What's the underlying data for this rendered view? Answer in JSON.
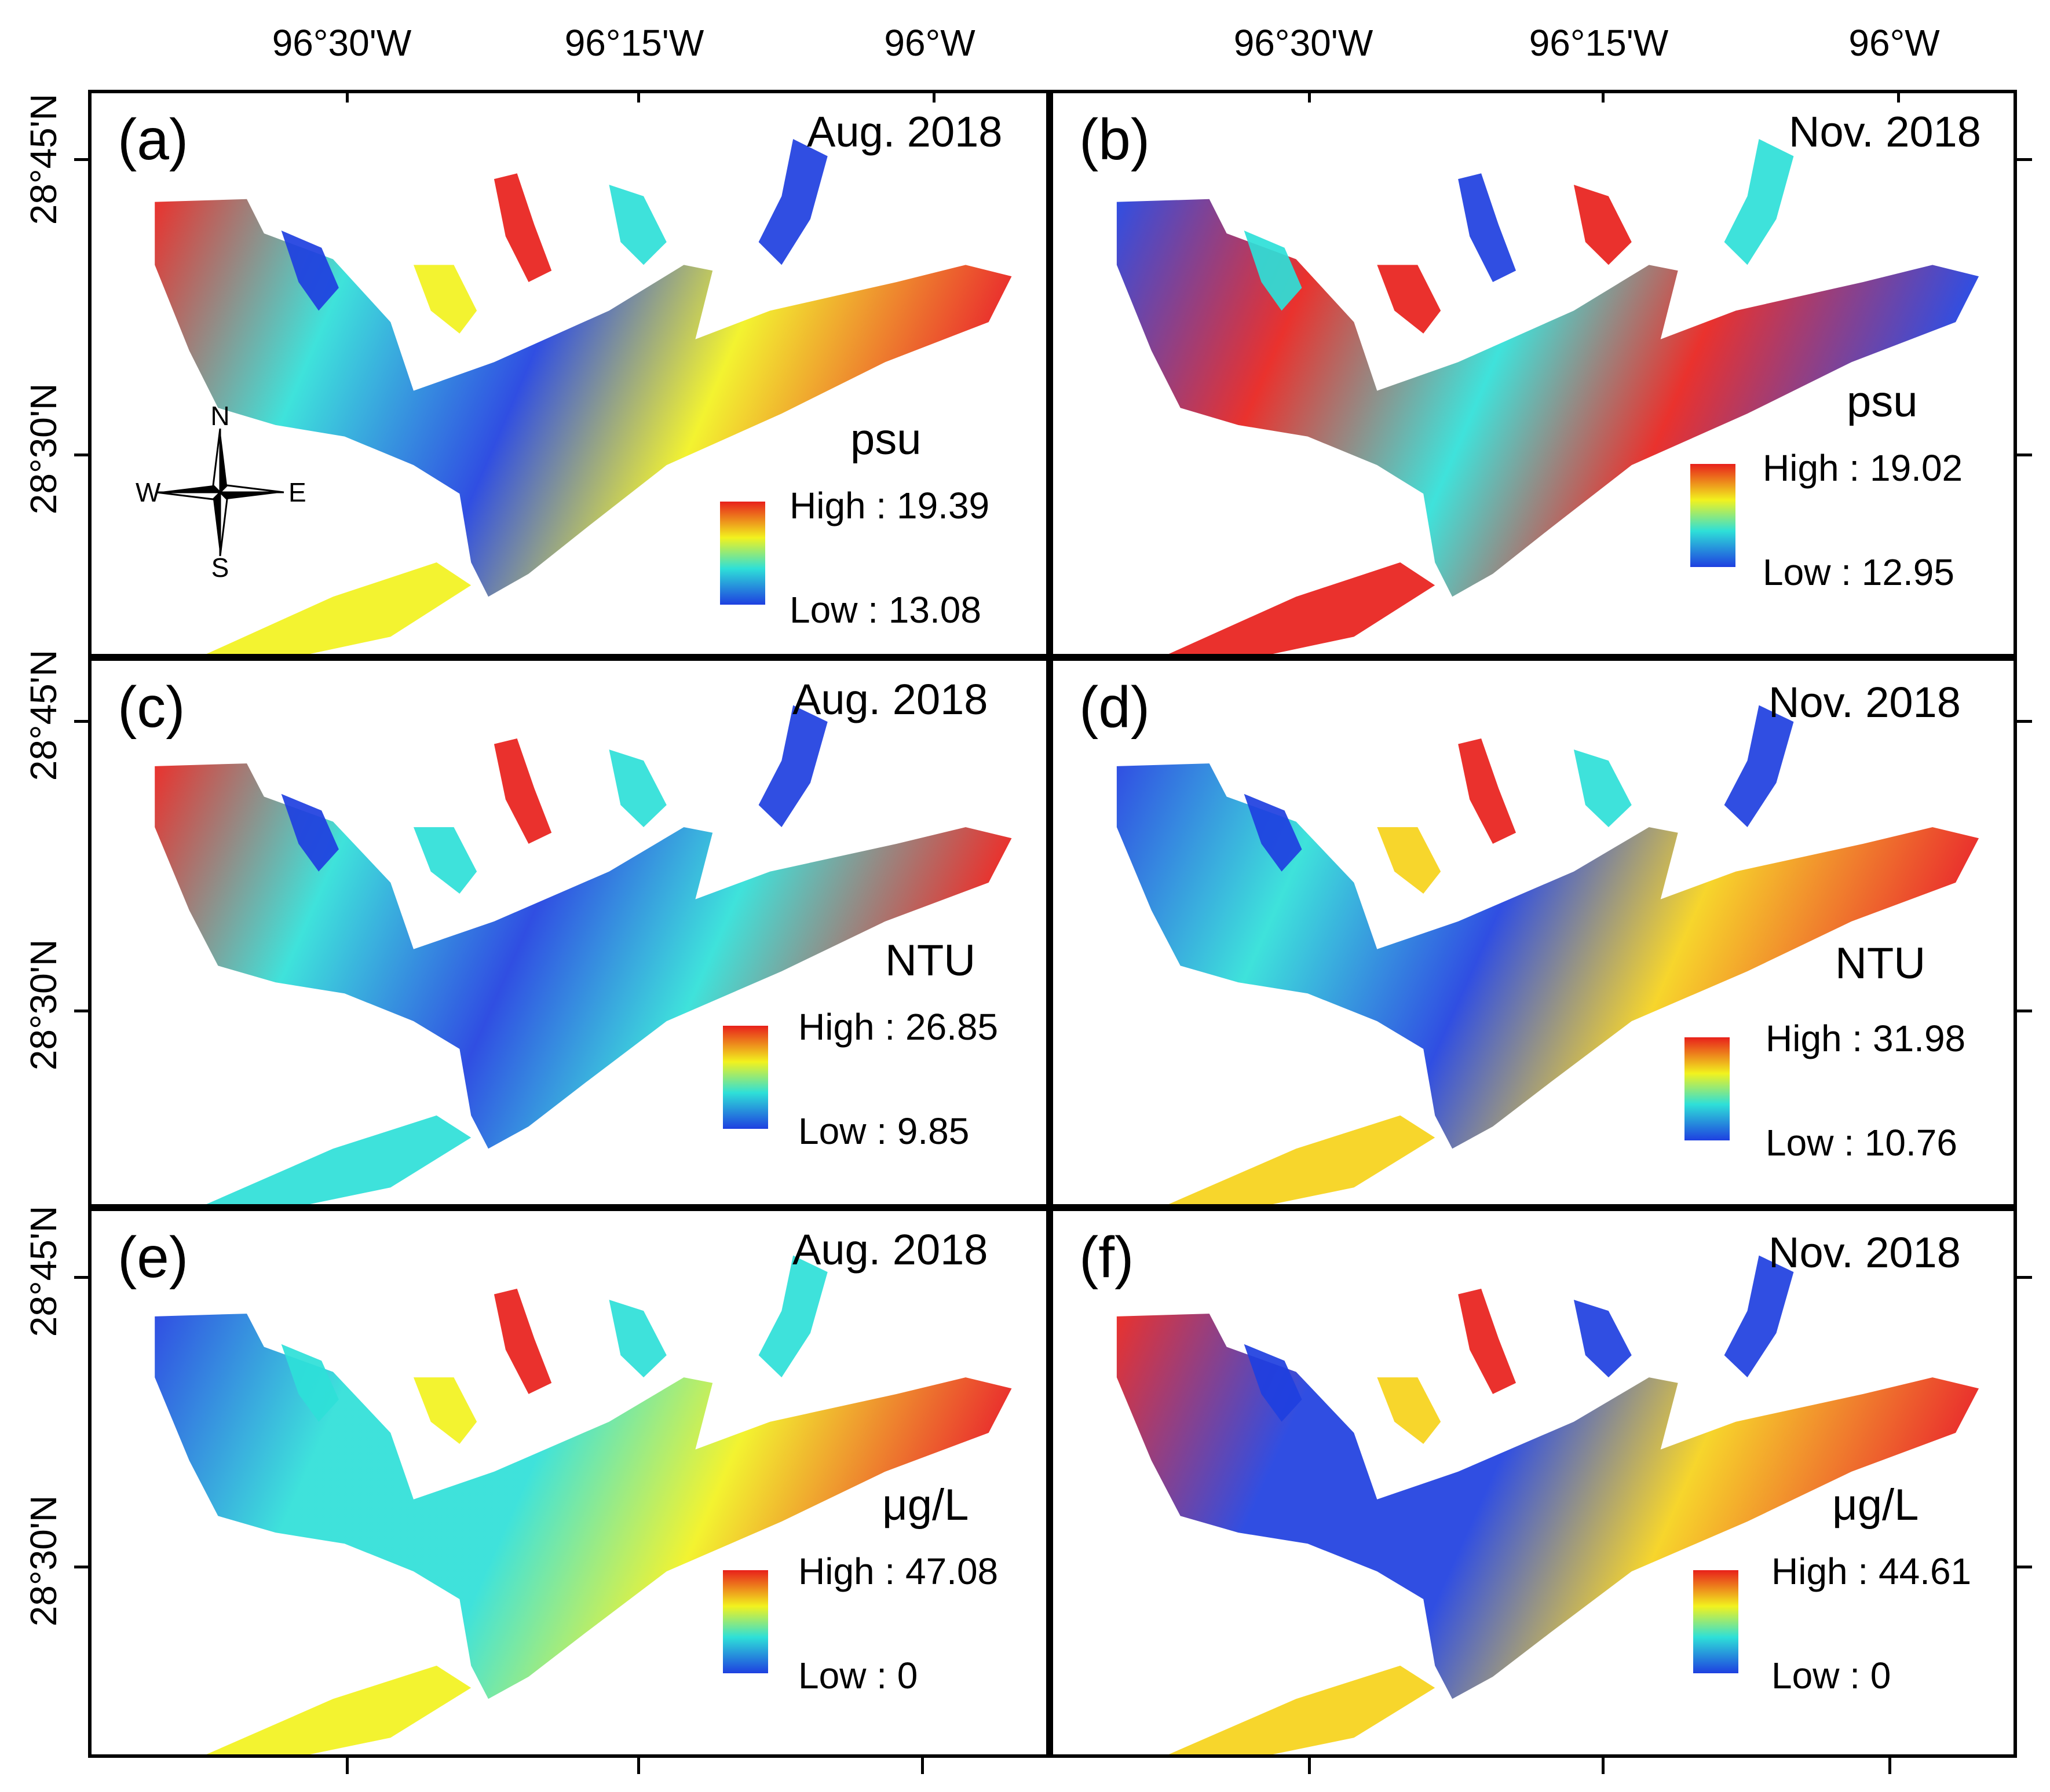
{
  "axes": {
    "top_ticks": [
      "96°30'W",
      "96°15'W",
      "96°W"
    ],
    "left_ticks": [
      {
        "row": 0,
        "labels": [
          "28°45'N",
          "28°30'N"
        ]
      },
      {
        "row": 1,
        "labels": [
          "28°45'N",
          "28°30'N"
        ]
      },
      {
        "row": 2,
        "labels": [
          "28°45'N",
          "28°30'N"
        ]
      }
    ]
  },
  "compass": {
    "n": "N",
    "s": "S",
    "e": "E",
    "w": "W"
  },
  "legend_labels": {
    "high_prefix": "High : ",
    "low_prefix": "Low : "
  },
  "panels": [
    {
      "id": "a",
      "letter": "(a)",
      "date": "Aug. 2018",
      "unit": "psu",
      "high": "19.39",
      "low": "13.08",
      "scheme": "salinity_aug"
    },
    {
      "id": "b",
      "letter": "(b)",
      "date": "Nov. 2018",
      "unit": "psu",
      "high": "19.02",
      "low": "12.95",
      "scheme": "salinity_nov"
    },
    {
      "id": "c",
      "letter": "(c)",
      "date": "Aug. 2018",
      "unit": "NTU",
      "high": "26.85",
      "low": "9.85",
      "scheme": "turb_aug"
    },
    {
      "id": "d",
      "letter": "(d)",
      "date": "Nov. 2018",
      "unit": "NTU",
      "high": "31.98",
      "low": "10.76",
      "scheme": "turb_nov"
    },
    {
      "id": "e",
      "letter": "(e)",
      "date": "Aug. 2018",
      "unit": "μg/L",
      "high": "47.08",
      "low": "0",
      "scheme": "chl_aug"
    },
    {
      "id": "f",
      "letter": "(f)",
      "date": "Nov. 2018",
      "unit": "μg/L",
      "high": "44.61",
      "low": "0",
      "scheme": "chl_nov"
    }
  ],
  "colors": {
    "high": "#e8201b",
    "mid_high": "#f6d21a",
    "mid": "#f2f21e",
    "mid_low": "#2ee0d8",
    "low": "#1e3fe0"
  }
}
